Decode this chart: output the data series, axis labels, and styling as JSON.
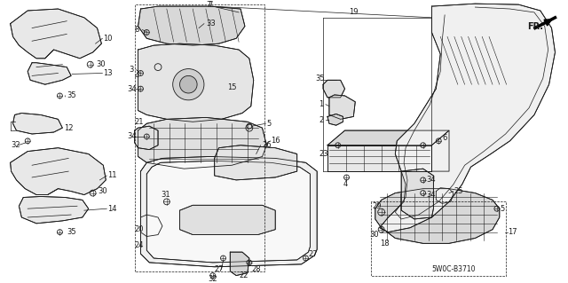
{
  "figsize": [
    6.4,
    3.19
  ],
  "dpi": 100,
  "bg": "#ffffff",
  "lc": "#1a1a1a",
  "diagram_code": "5W0C-B3710"
}
